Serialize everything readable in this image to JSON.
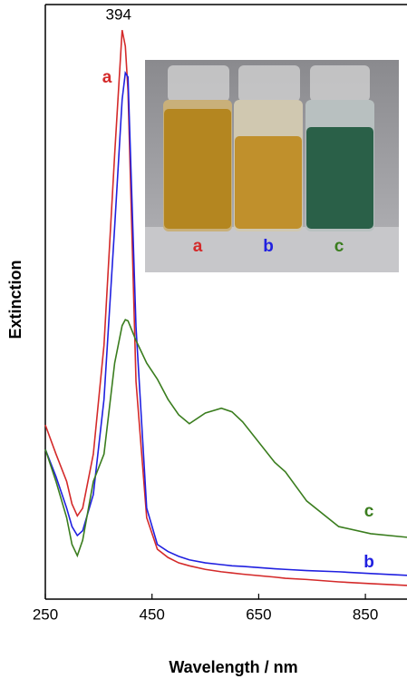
{
  "chart_data": {
    "type": "line",
    "xlabel": "Wavelength / nm",
    "ylabel": "Extinction",
    "x": [
      250,
      270,
      290,
      300,
      310,
      320,
      340,
      360,
      380,
      394,
      400,
      405,
      420,
      440,
      460,
      480,
      500,
      520,
      550,
      580,
      600,
      620,
      680,
      700,
      740,
      800,
      860,
      928
    ],
    "xlim": [
      250,
      928
    ],
    "xticks": [
      250,
      450,
      650,
      850
    ],
    "ylim": [
      0,
      1
    ],
    "series": [
      {
        "name": "a",
        "color": "#d42a2a",
        "values": [
          0.293,
          0.244,
          0.198,
          0.16,
          0.14,
          0.153,
          0.244,
          0.427,
          0.748,
          0.957,
          0.93,
          0.855,
          0.366,
          0.137,
          0.084,
          0.07,
          0.061,
          0.056,
          0.05,
          0.046,
          0.044,
          0.042,
          0.037,
          0.035,
          0.033,
          0.029,
          0.026,
          0.023
        ]
      },
      {
        "name": "b",
        "color": "#2020e0",
        "values": [
          0.252,
          0.206,
          0.153,
          0.122,
          0.107,
          0.115,
          0.176,
          0.336,
          0.626,
          0.84,
          0.885,
          0.878,
          0.458,
          0.153,
          0.092,
          0.08,
          0.072,
          0.066,
          0.061,
          0.058,
          0.056,
          0.055,
          0.051,
          0.05,
          0.048,
          0.046,
          0.043,
          0.04
        ]
      },
      {
        "name": "c",
        "color": "#3a7d1e",
        "values": [
          0.252,
          0.198,
          0.137,
          0.092,
          0.073,
          0.099,
          0.198,
          0.244,
          0.397,
          0.46,
          0.47,
          0.468,
          0.435,
          0.397,
          0.37,
          0.336,
          0.31,
          0.295,
          0.313,
          0.321,
          0.315,
          0.298,
          0.23,
          0.214,
          0.165,
          0.122,
          0.11,
          0.104
        ]
      }
    ],
    "annotations": [
      {
        "text": "394",
        "x": 394
      }
    ]
  }
}
